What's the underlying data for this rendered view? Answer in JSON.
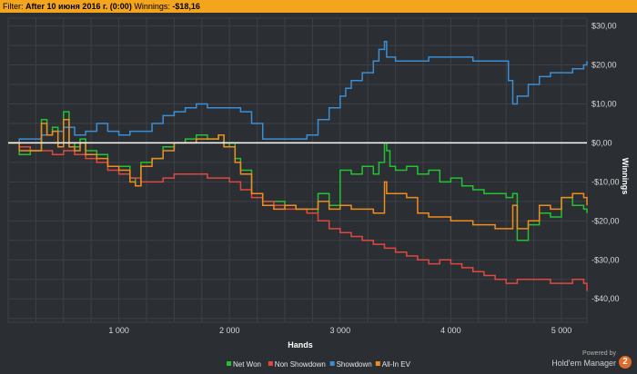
{
  "filter_bar": {
    "label": "Filter:",
    "filter_value": "After 10 июня 2016 г. (0:00)",
    "winnings_label": "Winnings:",
    "winnings_value": "-$18,16"
  },
  "branding": {
    "powered_by": "Powered by",
    "product": "Hold'em Manager",
    "logo_text": "2"
  },
  "colors": {
    "background": "#2b2e33",
    "grid": "#3d4147",
    "zero_line": "#ffffff",
    "filter_bar": "#f3a51e"
  },
  "chart_data": {
    "type": "line",
    "xlabel": "Hands",
    "ylabel": "Winnings",
    "xlim": [
      0,
      5230
    ],
    "ylim": [
      -46,
      32
    ],
    "x_ticks": [
      1000,
      2000,
      3000,
      4000,
      5000
    ],
    "x_tick_labels": [
      "1 000",
      "2 000",
      "3 000",
      "4 000",
      "5 000"
    ],
    "y_ticks": [
      30,
      20,
      10,
      0,
      -10,
      -20,
      -30,
      -40
    ],
    "y_tick_labels": [
      "$30,00",
      "$20,00",
      "$10,00",
      "$0,00",
      "-$10,00",
      "-$20,00",
      "-$30,00",
      "-$40,00"
    ],
    "grid": true,
    "legend_position": "bottom",
    "series": [
      {
        "name": "Net Won",
        "color": "#22c232",
        "x": [
          0,
          100,
          200,
          300,
          350,
          400,
          450,
          500,
          550,
          600,
          650,
          700,
          800,
          900,
          1000,
          1100,
          1150,
          1200,
          1300,
          1400,
          1500,
          1600,
          1700,
          1800,
          1900,
          1950,
          2000,
          2050,
          2100,
          2200,
          2300,
          2400,
          2500,
          2600,
          2700,
          2800,
          2900,
          3000,
          3100,
          3200,
          3300,
          3350,
          3400,
          3420,
          3450,
          3500,
          3600,
          3700,
          3800,
          3900,
          4000,
          4100,
          4200,
          4300,
          4400,
          4500,
          4560,
          4600,
          4700,
          4800,
          4900,
          5000,
          5100,
          5200,
          5230
        ],
        "y": [
          0,
          -3,
          -2,
          6,
          2,
          4,
          -1,
          8,
          0,
          -1,
          1,
          -2,
          -3,
          -6,
          -6,
          -9,
          -11,
          -5,
          -4,
          -1,
          0,
          1,
          2,
          1,
          2,
          -1,
          0,
          -4,
          -7,
          -13,
          -15,
          -15,
          -16,
          -17,
          -18,
          -13,
          -16,
          -7,
          -8,
          -6,
          -8,
          -5,
          0,
          -2,
          -6,
          -7,
          -6,
          -8,
          -7,
          -10,
          -9,
          -11,
          -12,
          -13,
          -13,
          -14,
          -13,
          -25,
          -21,
          -18,
          -19,
          -14,
          -16,
          -17,
          -18
        ]
      },
      {
        "name": "Non Showdown",
        "color": "#e0483f",
        "x": [
          0,
          100,
          200,
          300,
          400,
          500,
          600,
          700,
          800,
          900,
          1000,
          1100,
          1200,
          1300,
          1400,
          1500,
          1600,
          1700,
          1800,
          1900,
          2000,
          2100,
          2200,
          2300,
          2400,
          2500,
          2600,
          2700,
          2800,
          2900,
          3000,
          3100,
          3200,
          3300,
          3400,
          3500,
          3600,
          3700,
          3800,
          3900,
          4000,
          4100,
          4200,
          4300,
          4400,
          4500,
          4600,
          4700,
          4800,
          4900,
          5000,
          5100,
          5200,
          5230
        ],
        "y": [
          0,
          -1,
          -2,
          -2,
          -3,
          -2,
          -3,
          -4,
          -5,
          -7,
          -8,
          -9,
          -10,
          -10,
          -9,
          -8,
          -8,
          -8,
          -9,
          -9,
          -10,
          -12,
          -14,
          -15,
          -16,
          -17,
          -17,
          -18,
          -20,
          -22,
          -23,
          -24,
          -25,
          -26,
          -27,
          -28,
          -29,
          -30,
          -31,
          -30,
          -31,
          -32,
          -33,
          -34,
          -35,
          -36,
          -35,
          -35,
          -35,
          -36,
          -36,
          -35,
          -36,
          -38
        ]
      },
      {
        "name": "Showdown",
        "color": "#3b8ed4",
        "x": [
          0,
          100,
          200,
          300,
          400,
          500,
          600,
          700,
          800,
          900,
          1000,
          1100,
          1200,
          1300,
          1400,
          1500,
          1600,
          1700,
          1800,
          1900,
          2000,
          2100,
          2200,
          2300,
          2350,
          2400,
          2500,
          2600,
          2700,
          2800,
          2900,
          3000,
          3050,
          3100,
          3200,
          3300,
          3350,
          3400,
          3420,
          3500,
          3600,
          3700,
          3800,
          3900,
          4000,
          4100,
          4200,
          4300,
          4400,
          4500,
          4520,
          4560,
          4600,
          4700,
          4800,
          4900,
          5000,
          5100,
          5200,
          5230
        ],
        "y": [
          0,
          1,
          1,
          2,
          3,
          4,
          2,
          3,
          5,
          3,
          2,
          3,
          3,
          5,
          7,
          8,
          9,
          10,
          9,
          9,
          9,
          8,
          5,
          1,
          1,
          1,
          1,
          1,
          2,
          6,
          9,
          12,
          14,
          16,
          18,
          21,
          24,
          26,
          22,
          21,
          21,
          21,
          22,
          22,
          22,
          22,
          21,
          21,
          21,
          21,
          16,
          10,
          12,
          15,
          17,
          18,
          18,
          19,
          20,
          21
        ]
      },
      {
        "name": "All-In EV",
        "color": "#f08c1e",
        "x": [
          0,
          100,
          200,
          300,
          350,
          400,
          450,
          500,
          550,
          600,
          650,
          700,
          800,
          900,
          1000,
          1100,
          1150,
          1200,
          1300,
          1400,
          1500,
          1600,
          1700,
          1800,
          1900,
          1950,
          2000,
          2050,
          2100,
          2200,
          2300,
          2400,
          2500,
          2600,
          2700,
          2800,
          2900,
          3000,
          3100,
          3200,
          3300,
          3400,
          3420,
          3500,
          3600,
          3700,
          3800,
          3900,
          4000,
          4100,
          4200,
          4300,
          4400,
          4500,
          4560,
          4600,
          4700,
          4800,
          4900,
          5000,
          5100,
          5200,
          5230
        ],
        "y": [
          0,
          -2,
          -2,
          5,
          2,
          3,
          -1,
          6,
          -1,
          -2,
          0,
          -3,
          -4,
          -6,
          -7,
          -10,
          -11,
          -6,
          -4,
          -2,
          0,
          0,
          1,
          1,
          2,
          -1,
          -1,
          -5,
          -8,
          -13,
          -16,
          -17,
          -16,
          -17,
          -17,
          -15,
          -17,
          -16,
          -17,
          -17,
          -18,
          -10,
          -13,
          -13,
          -14,
          -18,
          -19,
          -19,
          -20,
          -20,
          -21,
          -21,
          -22,
          -22,
          -16,
          -22,
          -20,
          -16,
          -17,
          -14,
          -13,
          -14,
          -16
        ]
      }
    ]
  }
}
